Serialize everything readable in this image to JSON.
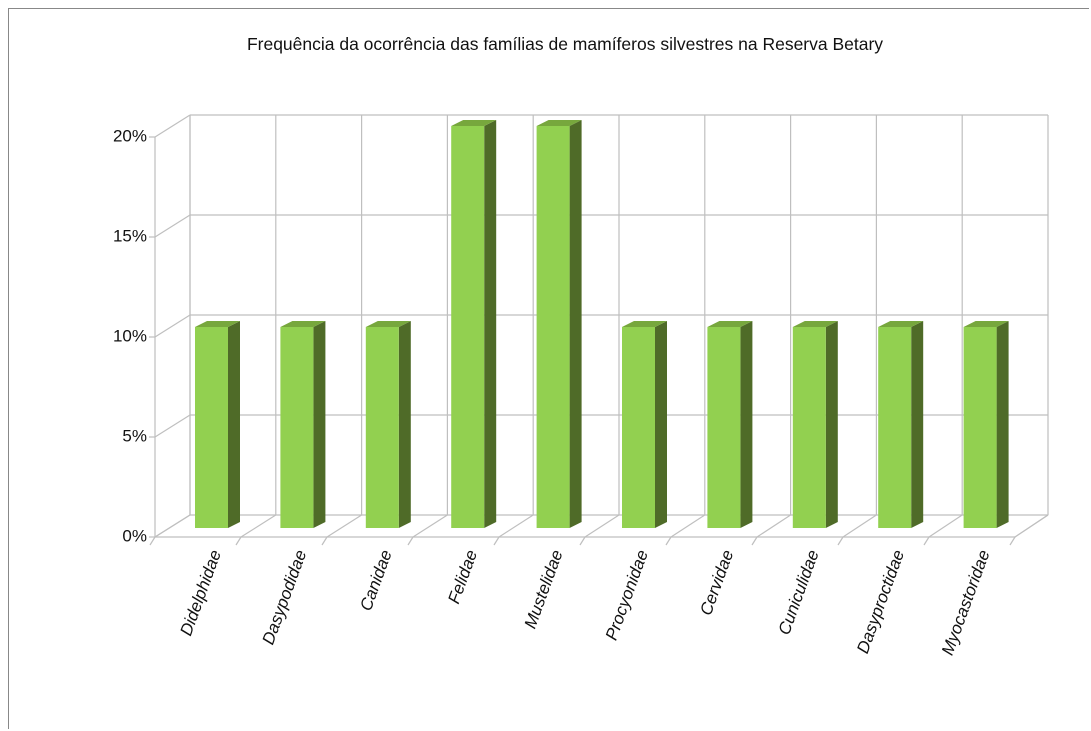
{
  "chart_data": {
    "type": "bar3d",
    "title": "Frequência da ocorrência das famílias de mamíferos silvestres na Reserva Betary",
    "categories": [
      "Didelphidae",
      "Dasypodidae",
      "Canidae",
      "Felidae",
      "Mustelidae",
      "Procyonidae",
      "Cervidae",
      "Cuniculidae",
      "Dasyproctidae",
      "Myocastoridae"
    ],
    "values": [
      10,
      10,
      10,
      20,
      20,
      10,
      10,
      10,
      10,
      10
    ],
    "color": "#92d050",
    "ylim": [
      0,
      20
    ],
    "yticks": [
      {
        "value": 0,
        "label": "0%"
      },
      {
        "value": 5,
        "label": "5%"
      },
      {
        "value": 10,
        "label": "10%"
      },
      {
        "value": 15,
        "label": "15%"
      },
      {
        "value": 20,
        "label": "20%"
      }
    ],
    "grid": true
  }
}
